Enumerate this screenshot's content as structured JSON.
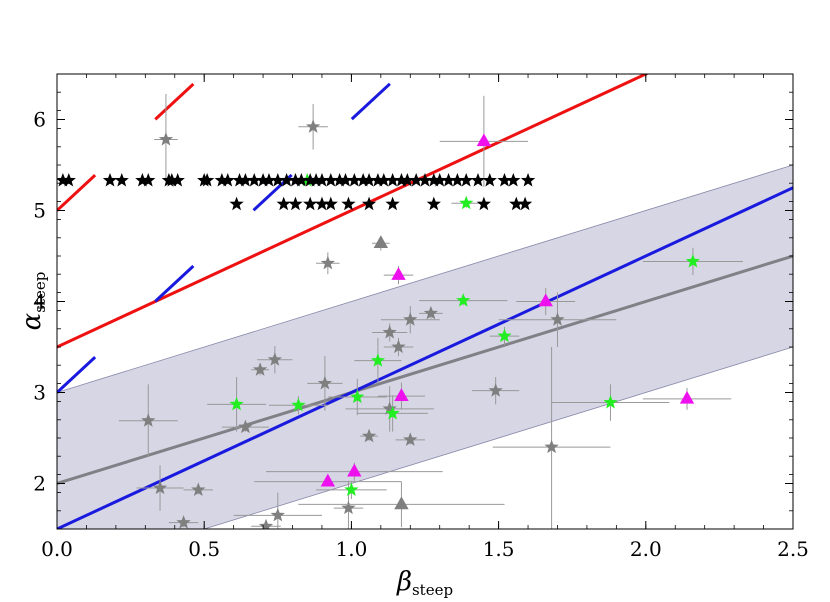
{
  "chart_data": {
    "type": "scatter",
    "title": "",
    "xlabel": {
      "symbol": "β",
      "subscript": "steep"
    },
    "ylabel": {
      "symbol": "α",
      "subscript": "steep"
    },
    "xlim": [
      0,
      2.5
    ],
    "ylim": [
      1.5,
      6.5
    ],
    "x_ticks": [
      0.0,
      0.5,
      1.0,
      1.5,
      2.0,
      2.5
    ],
    "x_tick_labels": [
      "0.0",
      "0.5",
      "1.0",
      "1.5",
      "2.0",
      "2.5"
    ],
    "y_ticks": [
      2,
      3,
      4,
      5,
      6
    ],
    "y_tick_labels": [
      "2",
      "3",
      "4",
      "5",
      "6"
    ],
    "grid": false,
    "colors": {
      "band": "#ccccdf",
      "band_edge": "#8888aa",
      "fit_line": "#808086",
      "red_line": "#ee1111",
      "blue_line": "#1a1adf",
      "grey_marker": "#7f7f7f",
      "green_marker": "#22ee22",
      "magenta_marker": "#ee11ee",
      "black_marker": "#000000",
      "error_bar": "#999999"
    },
    "band": {
      "name": "fit uncertainty band",
      "lower": {
        "intercept": 1.0,
        "slope": 1.0
      },
      "upper": {
        "intercept": 3.0,
        "slope": 1.0
      }
    },
    "lines": [
      {
        "name": "grey fit line",
        "intercept": 2.0,
        "slope": 1.0,
        "color": "#808086",
        "style": "solid"
      },
      {
        "name": "blue line",
        "intercept": 1.5,
        "slope": 1.5,
        "color": "#1a1adf",
        "style": "solid"
      },
      {
        "name": "red line",
        "intercept": 3.5,
        "slope": 1.5,
        "color": "#ee1111",
        "style": "solid"
      },
      {
        "name": "red dashed line",
        "intercept": 5.0,
        "slope": 3.0,
        "color": "#ee1111",
        "style": "dashed"
      },
      {
        "name": "blue dashed line",
        "intercept": 3.0,
        "slope": 3.0,
        "color": "#1a1adf",
        "style": "dashed"
      }
    ],
    "series": [
      {
        "name": "grey stars",
        "marker": "star",
        "color": "#7f7f7f",
        "points": [
          {
            "x": 0.37,
            "y": 5.78,
            "xerr": 0.04,
            "yerr": 0.5
          },
          {
            "x": 0.87,
            "y": 5.92,
            "xerr": 0.05,
            "yerr": 0.25
          },
          {
            "x": 0.92,
            "y": 4.42,
            "xerr": 0.04,
            "yerr": 0.12
          },
          {
            "x": 1.13,
            "y": 3.66,
            "xerr": 0.06,
            "yerr": 0.1
          },
          {
            "x": 1.16,
            "y": 3.5,
            "xerr": 0.05,
            "yerr": 0.1
          },
          {
            "x": 1.2,
            "y": 3.8,
            "xerr": 0.1,
            "yerr": 0.15
          },
          {
            "x": 1.27,
            "y": 3.87,
            "xerr": 0.04,
            "yerr": 0.06
          },
          {
            "x": 1.7,
            "y": 3.8,
            "xerr": 0.2,
            "yerr": 0.3
          },
          {
            "x": 0.74,
            "y": 3.36,
            "xerr": 0.06,
            "yerr": 0.15
          },
          {
            "x": 0.69,
            "y": 3.25,
            "xerr": 0.03,
            "yerr": 0.06
          },
          {
            "x": 0.91,
            "y": 3.1,
            "xerr": 0.06,
            "yerr": 0.3
          },
          {
            "x": 1.49,
            "y": 3.02,
            "xerr": 0.08,
            "yerr": 0.15
          },
          {
            "x": 1.13,
            "y": 2.82,
            "xerr": 0.15,
            "yerr": 0.25
          },
          {
            "x": 0.31,
            "y": 2.69,
            "xerr": 0.1,
            "yerr": 0.4
          },
          {
            "x": 0.64,
            "y": 2.62,
            "xerr": 0.08,
            "yerr": 0.05
          },
          {
            "x": 1.06,
            "y": 2.52,
            "xerr": 0.03,
            "yerr": 0.05
          },
          {
            "x": 1.2,
            "y": 2.48,
            "xerr": 0.05,
            "yerr": 0.05
          },
          {
            "x": 1.68,
            "y": 2.4,
            "xerr": 0.2,
            "yerr": 1.1
          },
          {
            "x": 0.35,
            "y": 1.95,
            "xerr": 0.08,
            "yerr": 0.25
          },
          {
            "x": 0.48,
            "y": 1.93,
            "xerr": 0.05,
            "yerr": 0.05
          },
          {
            "x": 0.99,
            "y": 1.73,
            "xerr": 0.05,
            "yerr": 0.3
          },
          {
            "x": 0.75,
            "y": 1.65,
            "xerr": 0.15,
            "yerr": 0.25
          },
          {
            "x": 0.43,
            "y": 1.57,
            "xerr": 0.05,
            "yerr": 0.05
          },
          {
            "x": 0.71,
            "y": 1.53,
            "xerr": 0.05,
            "yerr": 0.05
          }
        ]
      },
      {
        "name": "grey triangles",
        "marker": "triangle",
        "color": "#7f7f7f",
        "points": [
          {
            "x": 1.1,
            "y": 4.64,
            "xerr": 0.03,
            "yerr": 0.08
          },
          {
            "x": 1.17,
            "y": 1.77,
            "xerr": 0.35,
            "yerr": 0.25
          }
        ]
      },
      {
        "name": "green stars",
        "marker": "star",
        "color": "#22ee22",
        "points": [
          {
            "x": 0.85,
            "y": 5.33,
            "xerr": 0.02,
            "yerr": 0.02
          },
          {
            "x": 1.39,
            "y": 5.08,
            "xerr": 0.05,
            "yerr": 0.05
          },
          {
            "x": 1.38,
            "y": 4.01,
            "xerr": 0.15,
            "yerr": 0.05
          },
          {
            "x": 1.52,
            "y": 3.62,
            "xerr": 0.05,
            "yerr": 0.1
          },
          {
            "x": 2.16,
            "y": 4.44,
            "xerr": 0.17,
            "yerr": 0.15
          },
          {
            "x": 1.09,
            "y": 3.35,
            "xerr": 0.08,
            "yerr": 0.25
          },
          {
            "x": 0.61,
            "y": 2.87,
            "xerr": 0.1,
            "yerr": 0.3
          },
          {
            "x": 0.82,
            "y": 2.86,
            "xerr": 0.1,
            "yerr": 0.1
          },
          {
            "x": 1.02,
            "y": 2.95,
            "xerr": 0.1,
            "yerr": 0.2
          },
          {
            "x": 1.14,
            "y": 2.77,
            "xerr": 0.12,
            "yerr": 0.2
          },
          {
            "x": 1.88,
            "y": 2.89,
            "xerr": 0.2,
            "yerr": 0.2
          },
          {
            "x": 1.0,
            "y": 1.93,
            "xerr": 0.12,
            "yerr": 0.1
          }
        ]
      },
      {
        "name": "magenta triangles",
        "marker": "triangle",
        "color": "#ee11ee",
        "points": [
          {
            "x": 1.45,
            "y": 5.76,
            "xerr": 0.15,
            "yerr": 0.5
          },
          {
            "x": 1.16,
            "y": 4.29,
            "xerr": 0.05,
            "yerr": 0.1
          },
          {
            "x": 1.66,
            "y": 4.0,
            "xerr": 0.1,
            "yerr": 0.15
          },
          {
            "x": 1.17,
            "y": 2.96,
            "xerr": 0.08,
            "yerr": 0.15
          },
          {
            "x": 2.14,
            "y": 2.93,
            "xerr": 0.15,
            "yerr": 0.12
          },
          {
            "x": 0.92,
            "y": 2.02,
            "xerr": 0.25,
            "yerr": 0.05
          },
          {
            "x": 1.01,
            "y": 2.13,
            "xerr": 0.3,
            "yerr": 0.1
          }
        ]
      },
      {
        "name": "black stars (upper row)",
        "marker": "star",
        "color": "#000000",
        "points": [
          {
            "x": 0.02,
            "y": 5.33
          },
          {
            "x": 0.04,
            "y": 5.33
          },
          {
            "x": 0.18,
            "y": 5.33
          },
          {
            "x": 0.22,
            "y": 5.33
          },
          {
            "x": 0.29,
            "y": 5.33
          },
          {
            "x": 0.31,
            "y": 5.33
          },
          {
            "x": 0.38,
            "y": 5.33
          },
          {
            "x": 0.39,
            "y": 5.33
          },
          {
            "x": 0.41,
            "y": 5.33
          },
          {
            "x": 0.5,
            "y": 5.33
          },
          {
            "x": 0.51,
            "y": 5.33
          },
          {
            "x": 0.56,
            "y": 5.33
          },
          {
            "x": 0.58,
            "y": 5.33
          },
          {
            "x": 0.62,
            "y": 5.33
          },
          {
            "x": 0.64,
            "y": 5.33
          },
          {
            "x": 0.67,
            "y": 5.33
          },
          {
            "x": 0.7,
            "y": 5.33
          },
          {
            "x": 0.72,
            "y": 5.33
          },
          {
            "x": 0.75,
            "y": 5.33
          },
          {
            "x": 0.78,
            "y": 5.33
          },
          {
            "x": 0.81,
            "y": 5.33
          },
          {
            "x": 0.83,
            "y": 5.33
          },
          {
            "x": 0.86,
            "y": 5.33
          },
          {
            "x": 0.88,
            "y": 5.33
          },
          {
            "x": 0.9,
            "y": 5.33
          },
          {
            "x": 0.93,
            "y": 5.33
          },
          {
            "x": 0.96,
            "y": 5.33
          },
          {
            "x": 0.98,
            "y": 5.33
          },
          {
            "x": 1.01,
            "y": 5.33
          },
          {
            "x": 1.04,
            "y": 5.33
          },
          {
            "x": 1.06,
            "y": 5.33
          },
          {
            "x": 1.09,
            "y": 5.33
          },
          {
            "x": 1.11,
            "y": 5.33
          },
          {
            "x": 1.14,
            "y": 5.33
          },
          {
            "x": 1.17,
            "y": 5.33
          },
          {
            "x": 1.19,
            "y": 5.33
          },
          {
            "x": 1.22,
            "y": 5.33
          },
          {
            "x": 1.25,
            "y": 5.33
          },
          {
            "x": 1.28,
            "y": 5.33
          },
          {
            "x": 1.3,
            "y": 5.33
          },
          {
            "x": 1.33,
            "y": 5.33
          },
          {
            "x": 1.36,
            "y": 5.33
          },
          {
            "x": 1.39,
            "y": 5.33
          },
          {
            "x": 1.43,
            "y": 5.33
          },
          {
            "x": 1.47,
            "y": 5.33
          },
          {
            "x": 1.52,
            "y": 5.33
          },
          {
            "x": 1.55,
            "y": 5.33
          },
          {
            "x": 1.6,
            "y": 5.33
          }
        ]
      },
      {
        "name": "black stars (lower row)",
        "marker": "star",
        "color": "#000000",
        "points": [
          {
            "x": 0.61,
            "y": 5.07
          },
          {
            "x": 0.77,
            "y": 5.07
          },
          {
            "x": 0.81,
            "y": 5.07
          },
          {
            "x": 0.86,
            "y": 5.07
          },
          {
            "x": 0.9,
            "y": 5.07
          },
          {
            "x": 0.93,
            "y": 5.07
          },
          {
            "x": 0.99,
            "y": 5.07
          },
          {
            "x": 1.06,
            "y": 5.07
          },
          {
            "x": 1.14,
            "y": 5.07
          },
          {
            "x": 1.28,
            "y": 5.07
          },
          {
            "x": 1.45,
            "y": 5.07
          },
          {
            "x": 1.56,
            "y": 5.07
          },
          {
            "x": 1.59,
            "y": 5.07
          }
        ]
      }
    ]
  }
}
